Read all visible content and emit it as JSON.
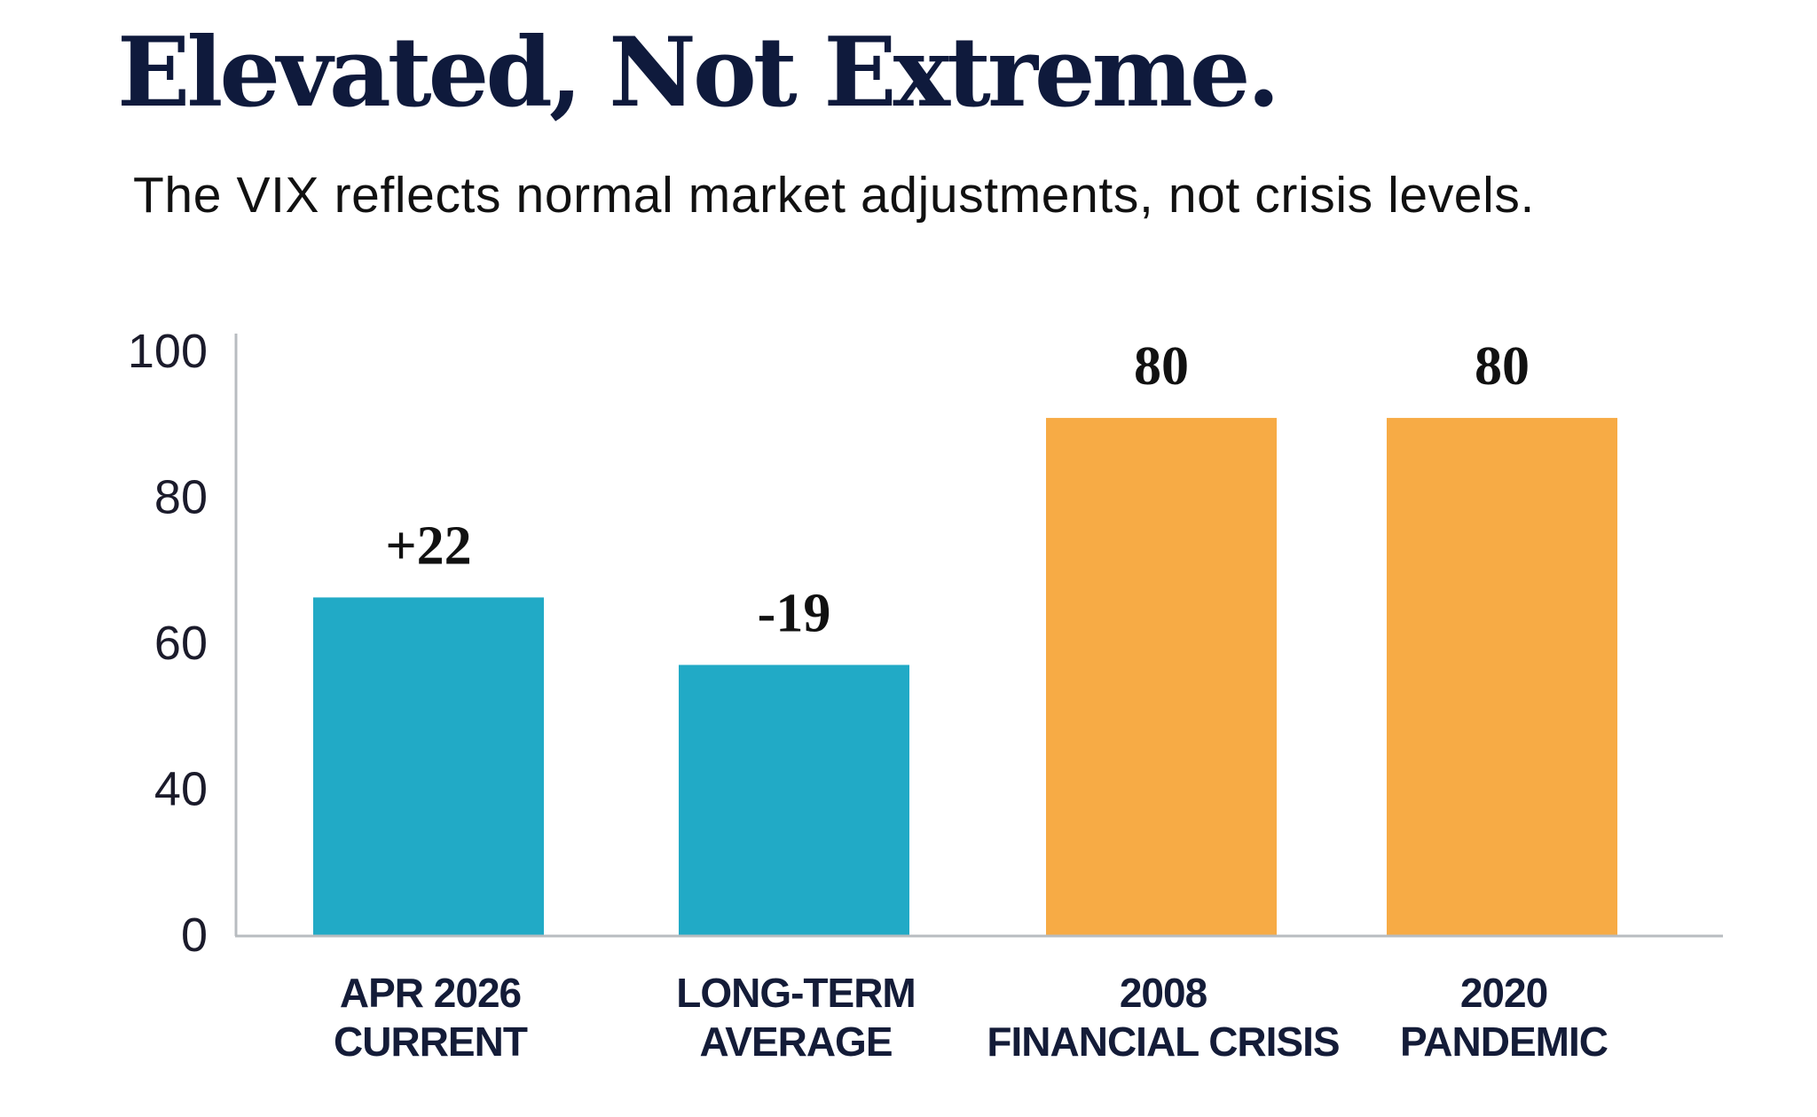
{
  "header": {
    "title": "Elevated, Not Extreme.",
    "subtitle": "The VIX reflects normal market adjustments, not crisis levels."
  },
  "colors": {
    "title": "#0f1a3c",
    "category_label": "#141c38",
    "current_series": "#21aac6",
    "crisis_series": "#f7ab45",
    "axis": "#b8bcc0"
  },
  "chart_data": {
    "type": "bar",
    "title": "Elevated, Not Extreme.",
    "subtitle": "The VIX reflects normal market adjustments, not crisis levels.",
    "xlabel": "",
    "ylabel": "",
    "y_ticks": [
      "100",
      "80",
      "60",
      "40",
      "0"
    ],
    "y_tick_note": "Tick labels are printed evenly spaced as 100, 80, 60, 40, 0 (no 20).",
    "ylim": [
      0,
      100
    ],
    "grid": false,
    "legend": "none",
    "categories": [
      [
        "APR 2026",
        "CURRENT"
      ],
      [
        "LONG-TERM",
        "AVERAGE"
      ],
      [
        "2008",
        "FINANCIAL CRISIS"
      ],
      [
        "2020",
        "PANDEMIC"
      ]
    ],
    "bars": [
      {
        "category": "APR 2026 CURRENT",
        "data_label": "+22",
        "axis_position": 0.562,
        "color_key": "current_series"
      },
      {
        "category": "LONG-TERM AVERAGE",
        "data_label": "-19",
        "axis_position": 0.45,
        "color_key": "current_series"
      },
      {
        "category": "2008 FINANCIAL CRISIS",
        "data_label": "80",
        "axis_position": 0.86,
        "color_key": "crisis_series"
      },
      {
        "category": "2020 PANDEMIC",
        "data_label": "80",
        "axis_position": 0.86,
        "color_key": "crisis_series"
      }
    ],
    "value_note": "axis_position is each bar's top as a fraction of the 0–100 axis span (bars drawn on the printed axis)."
  }
}
